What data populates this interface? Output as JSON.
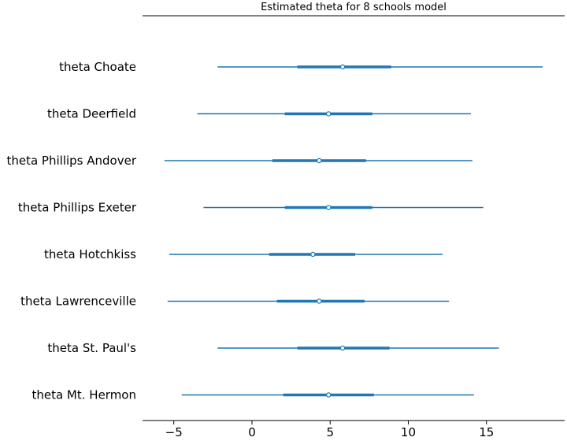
{
  "chart_data": {
    "type": "forest",
    "title": "Estimated theta for 8 schools model",
    "xlabel": "",
    "ylabel": "",
    "xlim": [
      -7,
      20
    ],
    "x_ticks": [
      -5,
      0,
      5,
      10,
      15
    ],
    "x_tick_labels": [
      "−5",
      "0",
      "5",
      "10",
      "15"
    ],
    "grid": false,
    "colors": {
      "interval": "#1f77b4",
      "marker_fill": "#ffffff",
      "axis": "#000000"
    },
    "rows": [
      {
        "label": "theta Choate",
        "median": 5.8,
        "inner": [
          2.9,
          8.9
        ],
        "outer": [
          -2.2,
          18.6
        ]
      },
      {
        "label": "theta Deerfield",
        "median": 4.9,
        "inner": [
          2.1,
          7.7
        ],
        "outer": [
          -3.5,
          14.0
        ]
      },
      {
        "label": "theta Phillips Andover",
        "median": 4.3,
        "inner": [
          1.3,
          7.3
        ],
        "outer": [
          -5.6,
          14.1
        ]
      },
      {
        "label": "theta Phillips Exeter",
        "median": 4.9,
        "inner": [
          2.1,
          7.7
        ],
        "outer": [
          -3.1,
          14.8
        ]
      },
      {
        "label": "theta Hotchkiss",
        "median": 3.9,
        "inner": [
          1.1,
          6.6
        ],
        "outer": [
          -5.3,
          12.2
        ]
      },
      {
        "label": "theta Lawrenceville",
        "median": 4.3,
        "inner": [
          1.6,
          7.2
        ],
        "outer": [
          -5.4,
          12.6
        ]
      },
      {
        "label": "theta St. Paul's",
        "median": 5.8,
        "inner": [
          2.9,
          8.8
        ],
        "outer": [
          -2.2,
          15.8
        ]
      },
      {
        "label": "theta Mt. Hermon",
        "median": 4.9,
        "inner": [
          2.0,
          7.8
        ],
        "outer": [
          -4.5,
          14.2
        ]
      }
    ]
  }
}
